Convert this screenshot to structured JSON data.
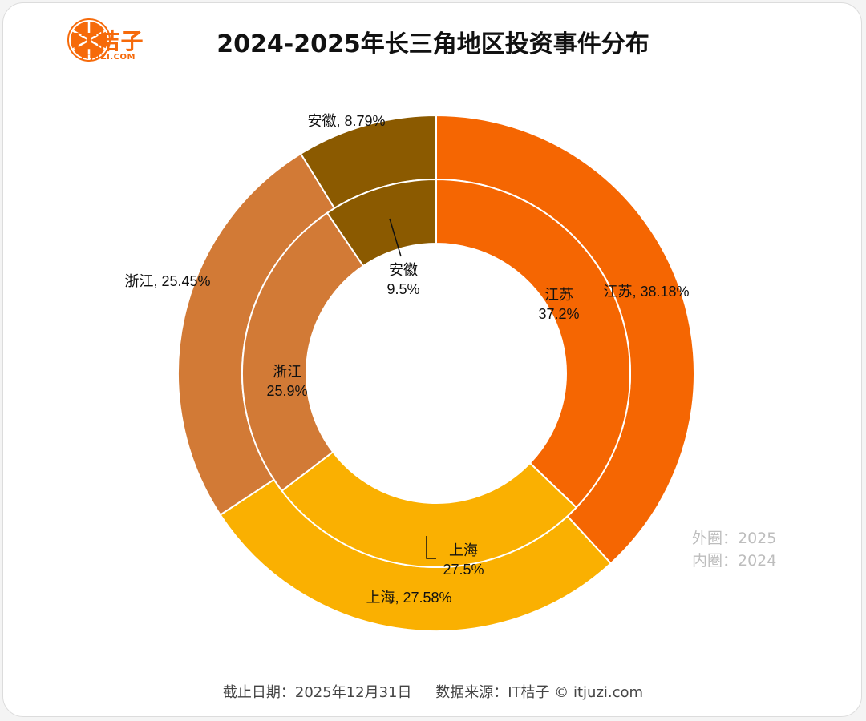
{
  "header": {
    "logo_text": "IT桔子",
    "logo_sub": "ITJUZI.COM",
    "logo_color": "#f66a0a"
  },
  "chart_data": {
    "type": "pie",
    "subtype": "nested-donut",
    "title": "2024-2025年长三角地区投资事件分布",
    "rings": [
      {
        "name": "外圈",
        "year": "2025",
        "position": "outer",
        "slices": [
          {
            "label": "江苏",
            "value": 38.18,
            "display": "江苏, 38.18%",
            "color": "#f56602"
          },
          {
            "label": "上海",
            "value": 27.58,
            "display": "上海, 27.58%",
            "color": "#fab001"
          },
          {
            "label": "浙江",
            "value": 25.45,
            "display": "浙江, 25.45%",
            "color": "#d27a36"
          },
          {
            "label": "安徽",
            "value": 8.79,
            "display": "安徽, 8.79%",
            "color": "#8b5a00"
          }
        ]
      },
      {
        "name": "内圈",
        "year": "2024",
        "position": "inner",
        "slices": [
          {
            "label": "江苏",
            "value": 37.2,
            "display_name": "江苏",
            "display_value": "37.2%",
            "color": "#f56602"
          },
          {
            "label": "上海",
            "value": 27.5,
            "display_name": "上海",
            "display_value": "27.5%",
            "color": "#fab001"
          },
          {
            "label": "浙江",
            "value": 25.9,
            "display_name": "浙江",
            "display_value": "25.9%",
            "color": "#d27a36"
          },
          {
            "label": "安徽",
            "value": 9.5,
            "display_name": "安徽",
            "display_value": "9.5%",
            "color": "#8b5a00"
          }
        ]
      }
    ],
    "legend": [
      "外圈：2025",
      "内圈：2024"
    ],
    "legend_position": "bottom-right"
  },
  "legend_note": {
    "outer": "外圈：2025",
    "inner": "内圈：2024"
  },
  "footer": {
    "cutoff": "截止日期：2025年12月31日",
    "source": "数据来源：IT桔子 © itjuzi.com"
  }
}
